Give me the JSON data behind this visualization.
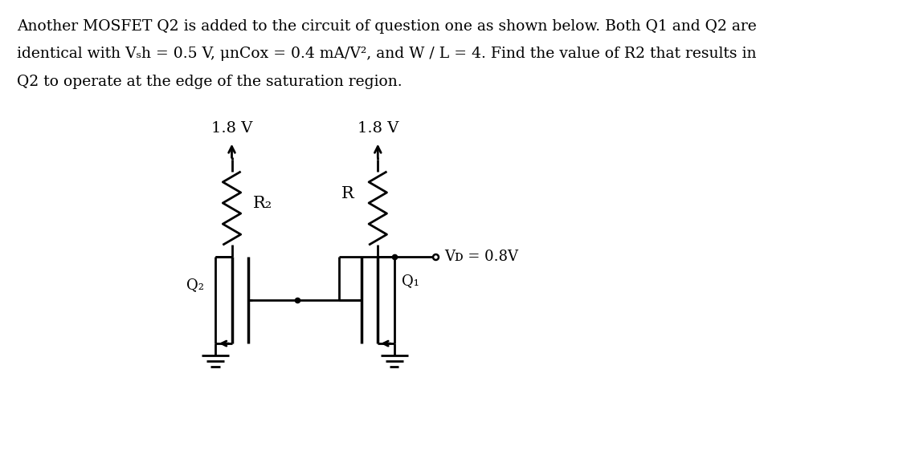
{
  "bg_color": "#ffffff",
  "line_color": "#000000",
  "fig_width": 11.19,
  "fig_height": 5.92,
  "header_line1": "Another MOSFET Q2 is added to the circuit of question one as shown below. Both Q1 and Q2 are",
  "header_line2": "identical with Vₛh = 0.5 V, μnCox = 0.4 mA/V², and W / L = 4. Find the value of R2 that results in",
  "header_line3": "Q2 to operate at the edge of the saturation region.",
  "vdd_label": "1.8 V",
  "vd_label": "Vᴅ = 0.8V",
  "r_label": "R",
  "r2_label": "R₂",
  "q1_label": "Q₁",
  "q2_label": "Q₂"
}
